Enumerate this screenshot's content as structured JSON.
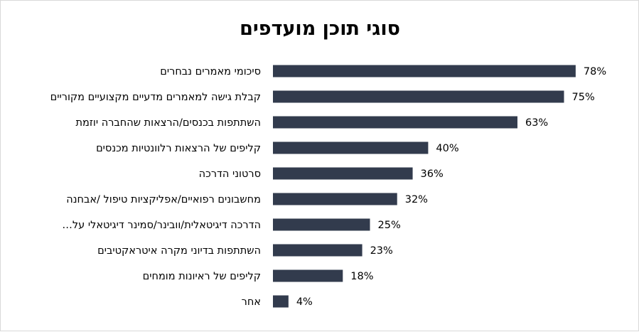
{
  "chart_data": {
    "type": "bar",
    "orientation": "horizontal",
    "title": "סוגי תוכן מועדפים",
    "categories": [
      "סיכומי מאמרים נבחרים",
      "קבלת גישה למאמרים מדעיים מקצועיים מקוריים",
      "השתתפות בכנסים/הרצאות שהחברה יוזמת",
      "קליפים של הרצאות רלוונטיות מכנסים",
      "סרטוני הדרכה",
      "מחשבונים רפואיים/אפליקציות טיפול /אבחנה",
      "הדרכה דיגיטאלית/וובינר/סמינר דיגיטאלי על…",
      "השתתפות בדיוני מקרה איטראקטיבים",
      "קליפים של ראיונות מומחים",
      "אחר"
    ],
    "values": [
      78,
      75,
      63,
      40,
      36,
      32,
      25,
      23,
      18,
      4
    ],
    "value_labels": [
      "78%",
      "75%",
      "63%",
      "40%",
      "36%",
      "32%",
      "25%",
      "23%",
      "18%",
      "4%"
    ],
    "xlim": [
      0,
      100
    ],
    "grid": false,
    "legend": "none",
    "bar_color": "#323b4d"
  }
}
